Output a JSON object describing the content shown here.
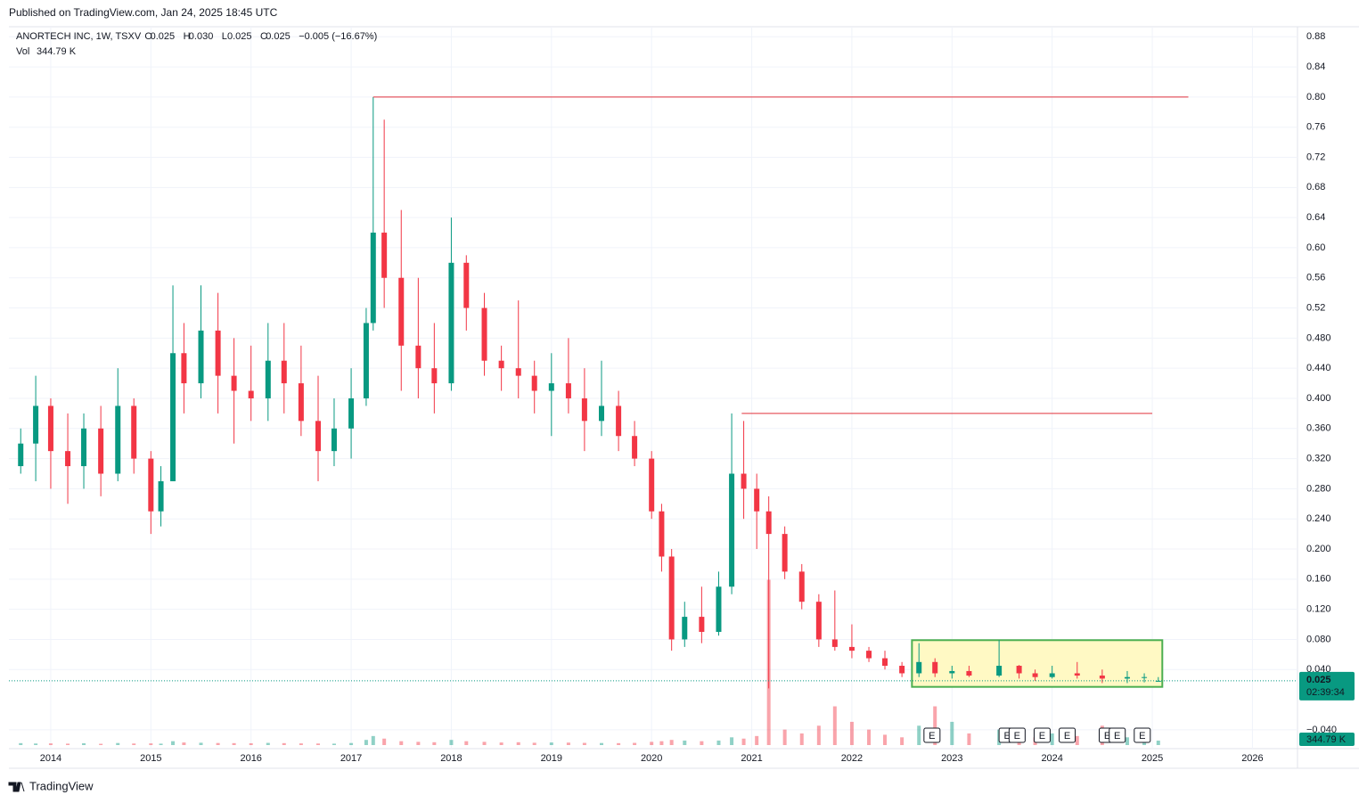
{
  "header": {
    "published": "Published on TradingView.com, Jan 24, 2025 18:45 UTC",
    "brand": "TradingView"
  },
  "legend": {
    "symbol": "ANORTECH INC, 1W, TSXV",
    "fields": [
      {
        "key": "O",
        "value": "0.025"
      },
      {
        "key": "H",
        "value": "0.030"
      },
      {
        "key": "L",
        "value": "0.025"
      },
      {
        "key": "C",
        "value": "0.025"
      }
    ],
    "change": "−0.005 (−16.67%)",
    "vol_key": "Vol",
    "vol_value": "344.79 K"
  },
  "chart_data": {
    "type": "candlestick",
    "x": [
      2013.7,
      2013.85,
      2014.0,
      2014.17,
      2014.33,
      2014.5,
      2014.67,
      2014.83,
      2015.0,
      2015.1,
      2015.22,
      2015.33,
      2015.5,
      2015.67,
      2015.83,
      2016.0,
      2016.17,
      2016.33,
      2016.5,
      2016.67,
      2016.83,
      2017.0,
      2017.15,
      2017.22,
      2017.33,
      2017.5,
      2017.67,
      2017.83,
      2018.0,
      2018.15,
      2018.33,
      2018.5,
      2018.67,
      2018.83,
      2019.0,
      2019.17,
      2019.33,
      2019.5,
      2019.67,
      2019.83,
      2020.0,
      2020.1,
      2020.2,
      2020.33,
      2020.5,
      2020.67,
      2020.8,
      2020.92,
      2021.05,
      2021.17,
      2021.33,
      2021.5,
      2021.67,
      2021.83,
      2022.0,
      2022.17,
      2022.33,
      2022.5,
      2022.67,
      2022.83,
      2023.0,
      2023.17,
      2023.47,
      2023.67,
      2023.83,
      2024.0,
      2024.25,
      2024.5,
      2024.75,
      2024.92,
      2025.06
    ],
    "open": [
      0.31,
      0.34,
      0.39,
      0.33,
      0.31,
      0.36,
      0.3,
      0.39,
      0.32,
      0.25,
      0.29,
      0.46,
      0.42,
      0.49,
      0.43,
      0.41,
      0.4,
      0.45,
      0.42,
      0.37,
      0.33,
      0.36,
      0.4,
      0.5,
      0.62,
      0.56,
      0.47,
      0.44,
      0.42,
      0.58,
      0.52,
      0.45,
      0.44,
      0.43,
      0.41,
      0.42,
      0.4,
      0.37,
      0.39,
      0.35,
      0.32,
      0.25,
      0.19,
      0.08,
      0.11,
      0.09,
      0.15,
      0.3,
      0.28,
      0.25,
      0.22,
      0.17,
      0.13,
      0.08,
      0.07,
      0.065,
      0.055,
      0.045,
      0.035,
      0.05,
      0.035,
      0.038,
      0.032,
      0.045,
      0.035,
      0.03,
      0.035,
      0.032,
      0.028,
      0.03,
      0.025
    ],
    "high": [
      0.36,
      0.43,
      0.4,
      0.38,
      0.38,
      0.39,
      0.44,
      0.4,
      0.33,
      0.31,
      0.55,
      0.5,
      0.55,
      0.54,
      0.48,
      0.47,
      0.5,
      0.5,
      0.47,
      0.43,
      0.4,
      0.44,
      0.52,
      0.8,
      0.77,
      0.65,
      0.56,
      0.5,
      0.64,
      0.59,
      0.54,
      0.47,
      0.53,
      0.45,
      0.46,
      0.48,
      0.44,
      0.45,
      0.41,
      0.37,
      0.33,
      0.26,
      0.2,
      0.13,
      0.15,
      0.17,
      0.38,
      0.37,
      0.3,
      0.27,
      0.23,
      0.18,
      0.14,
      0.145,
      0.1,
      0.07,
      0.065,
      0.05,
      0.075,
      0.055,
      0.045,
      0.045,
      0.079,
      0.046,
      0.04,
      0.045,
      0.05,
      0.04,
      0.038,
      0.035,
      0.03
    ],
    "low": [
      0.3,
      0.29,
      0.28,
      0.26,
      0.28,
      0.27,
      0.29,
      0.3,
      0.22,
      0.23,
      0.29,
      0.38,
      0.4,
      0.38,
      0.34,
      0.37,
      0.37,
      0.38,
      0.35,
      0.29,
      0.31,
      0.32,
      0.39,
      0.49,
      0.52,
      0.41,
      0.4,
      0.38,
      0.41,
      0.49,
      0.43,
      0.41,
      0.4,
      0.38,
      0.35,
      0.38,
      0.33,
      0.35,
      0.33,
      0.31,
      0.24,
      0.17,
      0.065,
      0.07,
      0.075,
      0.085,
      0.14,
      0.24,
      0.2,
      0.015,
      0.16,
      0.12,
      0.07,
      0.065,
      0.055,
      0.05,
      0.04,
      0.03,
      0.03,
      0.03,
      0.028,
      0.03,
      0.03,
      0.028,
      0.025,
      0.028,
      0.028,
      0.022,
      0.022,
      0.023,
      0.025
    ],
    "close": [
      0.34,
      0.39,
      0.33,
      0.31,
      0.36,
      0.3,
      0.39,
      0.32,
      0.25,
      0.29,
      0.46,
      0.42,
      0.49,
      0.43,
      0.41,
      0.4,
      0.45,
      0.42,
      0.37,
      0.33,
      0.36,
      0.4,
      0.5,
      0.62,
      0.56,
      0.47,
      0.44,
      0.42,
      0.58,
      0.52,
      0.45,
      0.44,
      0.43,
      0.41,
      0.42,
      0.4,
      0.37,
      0.39,
      0.35,
      0.32,
      0.25,
      0.19,
      0.08,
      0.11,
      0.09,
      0.15,
      0.3,
      0.28,
      0.25,
      0.22,
      0.17,
      0.13,
      0.08,
      0.07,
      0.065,
      0.055,
      0.045,
      0.035,
      0.05,
      0.035,
      0.038,
      0.032,
      0.045,
      0.035,
      0.03,
      0.035,
      0.032,
      0.028,
      0.03,
      0.03,
      0.025
    ],
    "volume": [
      150000,
      120000,
      130000,
      110000,
      140000,
      100000,
      160000,
      120000,
      130000,
      110000,
      300000,
      200000,
      180000,
      160000,
      150000,
      140000,
      170000,
      150000,
      130000,
      120000,
      110000,
      160000,
      400000,
      700000,
      500000,
      300000,
      250000,
      220000,
      400000,
      300000,
      250000,
      200000,
      220000,
      180000,
      200000,
      190000,
      170000,
      160000,
      150000,
      170000,
      250000,
      300000,
      400000,
      350000,
      300000,
      350000,
      600000,
      500000,
      700000,
      12800000,
      1200000,
      900000,
      1500000,
      3000000,
      1800000,
      1200000,
      800000,
      600000,
      1500000,
      3000000,
      1800000,
      900000,
      1200000,
      800000,
      600000,
      900000,
      700000,
      1500000,
      600000,
      500000,
      344790
    ],
    "colors": {
      "up": "#089981",
      "down": "#f23645",
      "level": "#e0303b",
      "grid": "#f0f3fa",
      "box_stroke": "#4caf50",
      "box_fill": "#fff9c4"
    },
    "xlim": [
      2013.6,
      2026.45
    ],
    "xticks": [
      2014,
      2015,
      2016,
      2017,
      2018,
      2019,
      2020,
      2021,
      2022,
      2023,
      2024,
      2025,
      2026
    ],
    "ylim": [
      -0.065,
      0.917
    ],
    "yticks": [
      0.88,
      0.84,
      {
        "value": 0.8,
        "label": "0.80"
      },
      0.76,
      0.72,
      0.68,
      0.64,
      {
        "value": 0.6,
        "label": "0.60"
      },
      0.56,
      0.52,
      {
        "value": 0.48,
        "label": "0.480"
      },
      {
        "value": 0.44,
        "label": "0.440"
      },
      {
        "value": 0.4,
        "label": "0.400"
      },
      {
        "value": 0.36,
        "label": "0.360"
      },
      {
        "value": 0.32,
        "label": "0.320"
      },
      {
        "value": 0.28,
        "label": "0.280"
      },
      {
        "value": 0.24,
        "label": "0.240"
      },
      {
        "value": 0.2,
        "label": "0.200"
      },
      {
        "value": 0.16,
        "label": "0.160"
      },
      {
        "value": 0.12,
        "label": "0.120"
      },
      {
        "value": 0.08,
        "label": "0.080"
      },
      {
        "value": 0.04,
        "label": "0.040"
      },
      {
        "value": -0.04,
        "label": "−0.040"
      }
    ],
    "vlim": [
      0,
      57000000
    ],
    "grid": true,
    "levels": [
      {
        "value": 0.8,
        "x": [
          2017.22,
          2025.36
        ]
      },
      {
        "value": 0.38,
        "x": [
          2020.9,
          2025.0
        ]
      }
    ],
    "box": {
      "x": [
        2022.6,
        2025.1
      ],
      "y": [
        0.017,
        0.079
      ]
    },
    "earnings": {
      "label": "E",
      "x": [
        2022.8,
        2023.55,
        2023.65,
        2023.9,
        2024.15,
        2024.55,
        2024.65,
        2024.9
      ]
    },
    "last_price": {
      "value": 0.025,
      "label": "0.025",
      "countdown": "02:39:34"
    },
    "last_volume_label": "344.79 K"
  }
}
